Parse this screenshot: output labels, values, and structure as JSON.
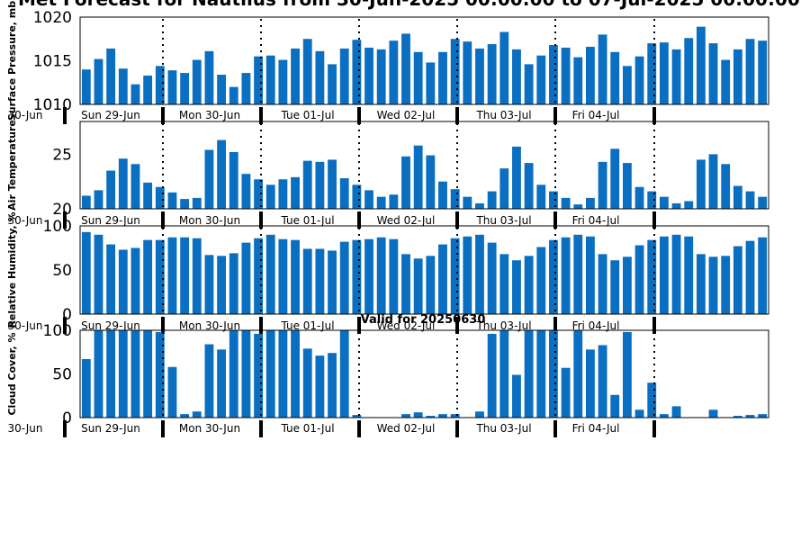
{
  "title": "Met Forecast for Nautilus from 30-Jun-2025 00:00:00 to 07-Jul-2025 00:00:00",
  "valid_label": "Valid for 20250630",
  "colors": {
    "bar": "#0a6fc1",
    "axis": "#000000",
    "background": "#ffffff"
  },
  "chart_data": [
    {
      "type": "bar",
      "ylabel": "Surface Pressure, mb",
      "ylim": [
        1010,
        1020
      ],
      "yticks": [
        "1010",
        "1015",
        "1020"
      ],
      "xtick_labels": [
        "30-Jun",
        "Sun 29-Jun",
        "Mon 30-Jun",
        "Tue 01-Jul",
        "Wed 02-Jul",
        "Thu 03-Jul",
        "Fri 04-Jul"
      ],
      "values": [
        1014.0,
        1015.2,
        1016.4,
        1014.1,
        1012.3,
        1013.3,
        1014.4,
        1013.9,
        1013.6,
        1015.1,
        1016.1,
        1013.4,
        1012.0,
        1013.6,
        1015.5,
        1015.6,
        1015.1,
        1016.4,
        1017.5,
        1016.1,
        1014.6,
        1016.4,
        1017.4,
        1016.5,
        1016.3,
        1017.3,
        1018.1,
        1016.0,
        1014.8,
        1016.0,
        1017.5,
        1017.2,
        1016.4,
        1016.9,
        1018.3,
        1016.3,
        1014.6,
        1015.6,
        1016.8,
        1016.5,
        1015.4,
        1016.6,
        1018.0,
        1016.0,
        1014.4,
        1015.5,
        1017.0,
        1017.1,
        1016.3,
        1017.6,
        1018.9,
        1017.0,
        1015.1,
        1016.3,
        1017.5,
        1017.3
      ]
    },
    {
      "type": "bar",
      "ylabel": "Air Temperature",
      "ylim": [
        20,
        28
      ],
      "yticks": [
        "20",
        "25"
      ],
      "xtick_labels": [
        "30-Jun",
        "Sun 29-Jun",
        "Mon 30-Jun",
        "Tue 01-Jul",
        "Wed 02-Jul",
        "Thu 03-Jul",
        "Fri 04-Jul"
      ],
      "values": [
        21.2,
        21.7,
        23.5,
        24.6,
        24.1,
        22.4,
        22.0,
        21.5,
        20.9,
        21.0,
        25.4,
        26.3,
        25.2,
        23.2,
        22.7,
        22.2,
        22.7,
        22.9,
        24.4,
        24.3,
        24.5,
        22.8,
        22.2,
        21.7,
        21.1,
        21.3,
        24.8,
        25.8,
        24.9,
        22.5,
        21.8,
        21.1,
        20.5,
        21.6,
        23.7,
        25.7,
        24.2,
        22.2,
        21.6,
        21.0,
        20.4,
        21.0,
        24.3,
        25.5,
        24.2,
        22.0,
        21.6,
        21.1,
        20.5,
        20.7,
        24.5,
        25.0,
        24.1,
        22.1,
        21.6,
        21.1
      ]
    },
    {
      "type": "bar",
      "ylabel": "Relative Humidity, %",
      "ylim": [
        0,
        100
      ],
      "yticks": [
        "0",
        "50",
        "100"
      ],
      "xtick_labels": [
        "30-Jun",
        "Sun 29-Jun",
        "Mon 30-Jun",
        "Tue 01-Jul",
        "Wed 02-Jul",
        "Thu 03-Jul",
        "Fri 04-Jul"
      ],
      "values": [
        93,
        90,
        79,
        73,
        75,
        84,
        84,
        87,
        87,
        86,
        67,
        66,
        69,
        81,
        86,
        90,
        85,
        84,
        74,
        74,
        72,
        82,
        84,
        85,
        87,
        85,
        68,
        63,
        66,
        79,
        86,
        88,
        90,
        81,
        68,
        61,
        66,
        76,
        84,
        87,
        90,
        88,
        68,
        61,
        65,
        78,
        84,
        88,
        90,
        88,
        68,
        65,
        66,
        77,
        83,
        87
      ]
    },
    {
      "type": "bar",
      "ylabel": "Cloud Cover, %",
      "ylim": [
        0,
        100
      ],
      "yticks": [
        "0",
        "50",
        "100"
      ],
      "xtick_labels": [
        "30-Jun",
        "Sun 29-Jun",
        "Mon 30-Jun",
        "Tue 01-Jul",
        "Wed 02-Jul",
        "Thu 03-Jul",
        "Fri 04-Jul"
      ],
      "values": [
        67,
        100,
        100,
        100,
        100,
        100,
        98,
        58,
        4,
        7,
        84,
        78,
        100,
        100,
        96,
        100,
        100,
        100,
        79,
        71,
        74,
        100,
        3,
        0,
        0,
        0,
        4,
        6,
        2,
        4,
        4,
        0,
        7,
        96,
        100,
        49,
        100,
        100,
        100,
        57,
        100,
        78,
        83,
        26,
        98,
        9,
        40,
        4,
        13,
        0,
        0,
        9,
        0,
        2,
        3,
        4
      ]
    }
  ]
}
